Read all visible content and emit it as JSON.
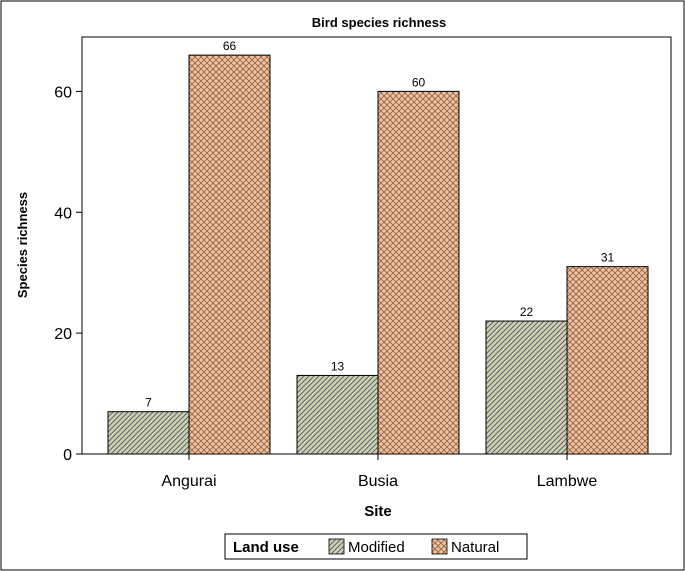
{
  "chart_data": {
    "type": "bar",
    "title": "Bird species richness",
    "xlabel": "Site",
    "ylabel": "Species richness",
    "categories": [
      "Angurai",
      "Busia",
      "Lambwe"
    ],
    "series": [
      {
        "name": "Modified",
        "values": [
          7,
          13,
          22
        ],
        "color": "#c9c9a6",
        "hatch": "diagonal"
      },
      {
        "name": "Natural",
        "values": [
          66,
          60,
          31
        ],
        "color": "#f2c29c",
        "hatch": "crosshatch"
      }
    ],
    "ylim": [
      0,
      69
    ],
    "yticks": [
      0,
      20,
      40,
      60
    ],
    "data_labels": true,
    "grid": false,
    "legend": {
      "title": "Land use",
      "position": "bottom"
    }
  }
}
